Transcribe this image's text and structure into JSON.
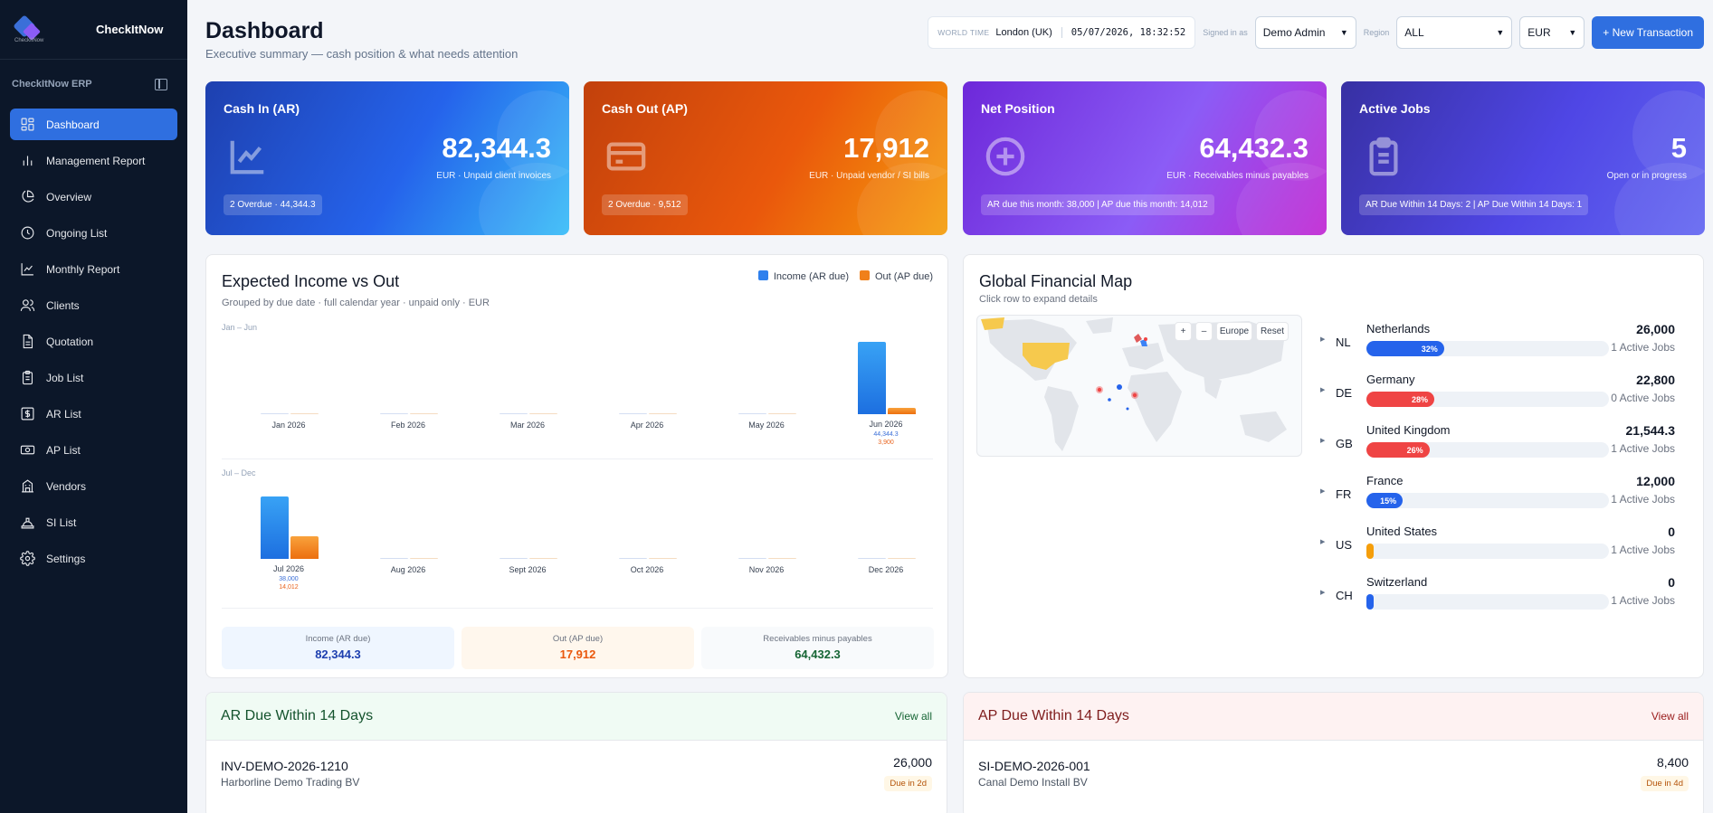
{
  "sidebar": {
    "brand": "CheckItNow",
    "logo_text": "CheckItNow",
    "erp_label": "CheckItNow ERP",
    "items": [
      {
        "label": "Dashboard",
        "icon": "dashboard-icon",
        "active": true
      },
      {
        "label": "Management Report",
        "icon": "bar-chart-icon"
      },
      {
        "label": "Overview",
        "icon": "pie-chart-icon"
      },
      {
        "label": "Ongoing List",
        "icon": "clock-icon"
      },
      {
        "label": "Monthly Report",
        "icon": "line-chart-icon"
      },
      {
        "label": "Clients",
        "icon": "users-icon"
      },
      {
        "label": "Quotation",
        "icon": "document-icon"
      },
      {
        "label": "Job List",
        "icon": "clipboard-icon"
      },
      {
        "label": "AR List",
        "icon": "dollar-icon"
      },
      {
        "label": "AP List",
        "icon": "cash-icon"
      },
      {
        "label": "Vendors",
        "icon": "building-icon"
      },
      {
        "label": "SI List",
        "icon": "hard-hat-icon"
      },
      {
        "label": "Settings",
        "icon": "gear-icon"
      }
    ]
  },
  "header": {
    "title": "Dashboard",
    "subtitle": "Executive summary — cash position & what needs attention",
    "world_time_label": "WORLD TIME",
    "city": "London (UK)",
    "datetime": "05/07/2026, 18:32:52",
    "signed_in_label": "Signed in as",
    "user": "Demo Admin",
    "region_label": "Region",
    "region": "ALL",
    "currency": "EUR",
    "new_button": "+ New Transaction"
  },
  "kpis": [
    {
      "title": "Cash In (AR)",
      "value": "82,344.3",
      "sub": "EUR · Unpaid client invoices",
      "badge": "2 Overdue · 44,344.3",
      "icon": "line-chart-icon"
    },
    {
      "title": "Cash Out (AP)",
      "value": "17,912",
      "sub": "EUR · Unpaid vendor / SI bills",
      "badge": "2 Overdue · 9,512",
      "icon": "credit-card-icon"
    },
    {
      "title": "Net Position",
      "value": "64,432.3",
      "sub": "EUR · Receivables minus payables",
      "badge": "AR due this month: 38,000 | AP due this month: 14,012",
      "icon": "plus-circle-icon"
    },
    {
      "title": "Active Jobs",
      "value": "5",
      "sub": "Open or in progress",
      "badge": "AR Due Within 14 Days: 2 | AP Due Within 14 Days: 1",
      "icon": "clipboard-icon"
    }
  ],
  "chart": {
    "title": "Expected Income vs Out",
    "subtitle": "Grouped by due date · full calendar year · unpaid only · EUR",
    "row1_label": "Jan – Jun",
    "row2_label": "Jul – Dec",
    "summary": [
      {
        "label": "Income (AR due)",
        "value": "82,344.3"
      },
      {
        "label": "Out (AP due)",
        "value": "17,912"
      },
      {
        "label": "Receivables minus payables",
        "value": "64,432.3"
      }
    ]
  },
  "chart_data": {
    "type": "bar",
    "categories": [
      "Jan 2026",
      "Feb 2026",
      "Mar 2026",
      "Apr 2026",
      "May 2026",
      "Jun 2026",
      "Jul 2026",
      "Aug 2026",
      "Sept 2026",
      "Oct 2026",
      "Nov 2026",
      "Dec 2026"
    ],
    "series": [
      {
        "name": "Income (AR due)",
        "values": [
          0,
          0,
          0,
          0,
          0,
          44344.3,
          38000,
          0,
          0,
          0,
          0,
          0
        ],
        "color": "#2f80ed"
      },
      {
        "name": "Out (AP due)",
        "values": [
          0,
          0,
          0,
          0,
          0,
          3900,
          14012,
          0,
          0,
          0,
          0,
          0
        ],
        "color": "#f0801a"
      }
    ],
    "data_labels": {
      "Jun 2026": [
        "44,344.3",
        "3,900"
      ],
      "Jul 2026": [
        "38,000",
        "14,012"
      ]
    },
    "legend_position": "top-right",
    "grid": false
  },
  "map": {
    "title": "Global Financial Map",
    "subtitle": "Click row to expand details",
    "zoom_in": "+",
    "zoom_out": "–",
    "europe": "Europe",
    "reset": "Reset",
    "countries": [
      {
        "code": "NL",
        "name": "Netherlands",
        "value": "26,000",
        "jobs": "1 Active Jobs",
        "pct": 32,
        "pct_label": "32%",
        "color": "#2563eb"
      },
      {
        "code": "DE",
        "name": "Germany",
        "value": "22,800",
        "jobs": "0 Active Jobs",
        "pct": 28,
        "pct_label": "28%",
        "color": "#ef4444"
      },
      {
        "code": "GB",
        "name": "United Kingdom",
        "value": "21,544.3",
        "jobs": "1 Active Jobs",
        "pct": 26,
        "pct_label": "26%",
        "color": "#ef4444"
      },
      {
        "code": "FR",
        "name": "France",
        "value": "12,000",
        "jobs": "1 Active Jobs",
        "pct": 15,
        "pct_label": "15%",
        "color": "#2563eb"
      },
      {
        "code": "US",
        "name": "United States",
        "value": "0",
        "jobs": "1 Active Jobs",
        "pct": 0,
        "pct_label": "",
        "color": "#f59e0b"
      },
      {
        "code": "CH",
        "name": "Switzerland",
        "value": "0",
        "jobs": "1 Active Jobs",
        "pct": 0,
        "pct_label": "",
        "color": "#2563eb"
      }
    ]
  },
  "ar_due": {
    "title": "AR Due Within 14 Days",
    "view_all": "View all",
    "rows": [
      {
        "invoice": "INV-DEMO-2026-1210",
        "company": "Harborline Demo Trading BV",
        "amount": "26,000",
        "due": "Due in 2d"
      }
    ]
  },
  "ap_due": {
    "title": "AP Due Within 14 Days",
    "view_all": "View all",
    "rows": [
      {
        "invoice": "SI-DEMO-2026-001",
        "company": "Canal Demo Install BV",
        "amount": "8,400",
        "due": "Due in 4d"
      }
    ]
  }
}
